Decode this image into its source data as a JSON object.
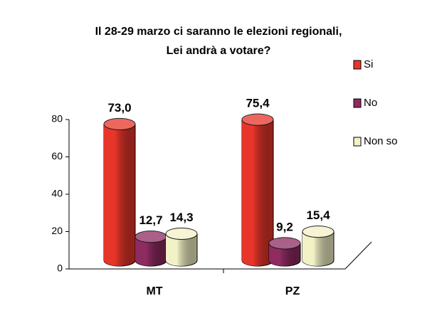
{
  "chart_data": {
    "type": "bar3d",
    "title": [
      "Il 28-29 marzo ci saranno le elezioni regionali,",
      "Lei andrà a votare?"
    ],
    "categories": [
      "MT",
      "PZ"
    ],
    "series": [
      {
        "name": "Si",
        "color": "#e8352a",
        "values": [
          73.0,
          75.4
        ],
        "value_labels": [
          "73,0",
          "75,4"
        ]
      },
      {
        "name": "No",
        "color": "#8e2b60",
        "values": [
          12.7,
          9.2
        ],
        "value_labels": [
          "12,7",
          "9,2"
        ]
      },
      {
        "name": "Non so",
        "color": "#f3f1c6",
        "values": [
          14.3,
          15.4
        ],
        "value_labels": [
          "14,3",
          "15,4"
        ]
      }
    ],
    "ylim": [
      0,
      80
    ],
    "yticks": [
      0,
      20,
      40,
      60,
      80
    ],
    "legend": "right"
  }
}
